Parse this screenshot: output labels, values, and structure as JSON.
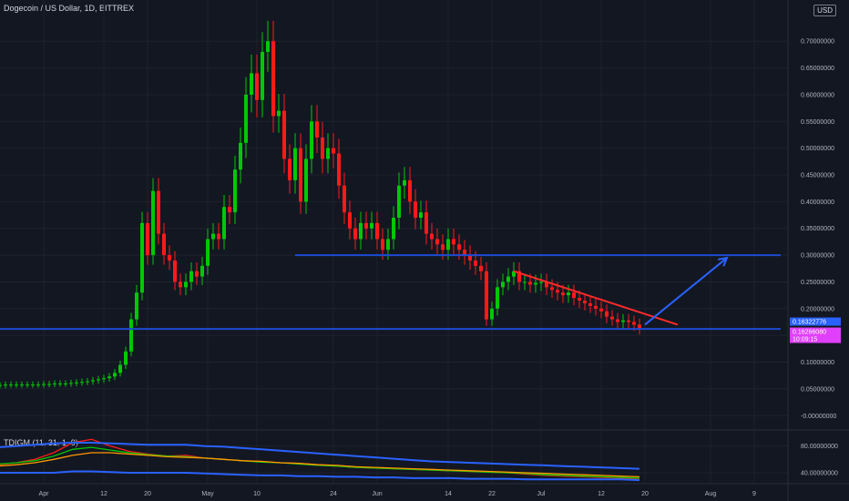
{
  "header": {
    "title": "Dogecoin / US Dollar, 1D, BITTREX"
  },
  "currency_button": "USD",
  "indicator": {
    "label": "TDIGM (11, 31, 1, 9)"
  },
  "price_labels": {
    "current": "0.16322776",
    "second": "0.16266080",
    "countdown": "10:09:15"
  },
  "colors": {
    "background": "#131722",
    "up": "#00c805",
    "down": "#ff1a1a",
    "support": "#1e4bd2",
    "trendline": "#ff2a2a",
    "arrow": "#2962ff",
    "current_price": "#2962ff",
    "second_price": "#e040fb"
  },
  "chart_data": [
    {
      "type": "candlestick",
      "title": "Dogecoin / US Dollar, 1D, BITTREX",
      "xlabel": "",
      "ylabel": "",
      "ylim": [
        -0.02,
        0.76
      ],
      "y_ticks": [
        "0.70000000",
        "0.65000000",
        "0.60000000",
        "0.55000000",
        "0.50000000",
        "0.45000000",
        "0.40000000",
        "0.35000000",
        "0.30000000",
        "0.25000000",
        "0.20000000",
        "0.15000000",
        "0.10000000",
        "0.05000000",
        "-0.00000000"
      ],
      "x_ticks": [
        "Apr",
        "12",
        "20",
        "May",
        "10",
        "24",
        "Jun",
        "14",
        "22",
        "Jul",
        "12",
        "20",
        "Aug",
        "9"
      ],
      "grid": true,
      "start_date": "2021-03-20",
      "closes": [
        0.058,
        0.057,
        0.057,
        0.057,
        0.057,
        0.058,
        0.058,
        0.058,
        0.058,
        0.058,
        0.058,
        0.058,
        0.059,
        0.059,
        0.06,
        0.06,
        0.06,
        0.061,
        0.062,
        0.063,
        0.064,
        0.066,
        0.068,
        0.07,
        0.073,
        0.08,
        0.095,
        0.12,
        0.18,
        0.23,
        0.36,
        0.3,
        0.42,
        0.34,
        0.3,
        0.29,
        0.25,
        0.24,
        0.25,
        0.27,
        0.26,
        0.28,
        0.33,
        0.34,
        0.33,
        0.39,
        0.38,
        0.46,
        0.51,
        0.6,
        0.64,
        0.59,
        0.68,
        0.7,
        0.56,
        0.57,
        0.48,
        0.44,
        0.5,
        0.4,
        0.48,
        0.55,
        0.52,
        0.48,
        0.5,
        0.49,
        0.43,
        0.38,
        0.35,
        0.33,
        0.36,
        0.35,
        0.36,
        0.33,
        0.31,
        0.33,
        0.37,
        0.43,
        0.44,
        0.4,
        0.37,
        0.38,
        0.34,
        0.33,
        0.32,
        0.31,
        0.33,
        0.32,
        0.31,
        0.3,
        0.29,
        0.28,
        0.27,
        0.18,
        0.2,
        0.24,
        0.25,
        0.26,
        0.27,
        0.25,
        0.25,
        0.245,
        0.248,
        0.25,
        0.24,
        0.235,
        0.23,
        0.225,
        0.23,
        0.22,
        0.215,
        0.21,
        0.205,
        0.2,
        0.195,
        0.185,
        0.18,
        0.175,
        0.178,
        0.175,
        0.17,
        0.163
      ],
      "support_lines": [
        0.3,
        0.162
      ],
      "trendline": {
        "from": [
          "2021-06-26",
          0.27
        ],
        "to": [
          "2021-07-26",
          0.17
        ]
      },
      "arrow": {
        "from": [
          "2021-07-20",
          0.17
        ],
        "to": [
          "2021-08-04",
          0.295
        ]
      }
    },
    {
      "type": "line",
      "title": "TDIGM (11, 31, 1, 9)",
      "y_ticks": [
        "80.00000000",
        "40.00000000"
      ],
      "ylim": [
        25,
        100
      ],
      "series": [
        {
          "color": "#ff1a1a",
          "values": [
            50,
            52,
            55,
            60,
            70,
            85,
            90,
            80,
            72,
            68,
            65,
            66,
            62,
            60,
            58,
            57,
            55,
            54,
            52,
            50,
            48,
            47,
            46,
            45,
            44,
            43,
            42,
            41,
            40,
            38,
            36,
            35,
            34,
            33,
            32,
            30
          ]
        },
        {
          "color": "#00c805",
          "values": [
            52,
            53,
            55,
            58,
            65,
            75,
            78,
            74,
            70,
            67,
            65,
            64,
            62,
            60,
            58,
            56,
            55,
            53,
            51,
            50,
            48,
            47,
            46,
            45,
            44,
            43,
            42,
            41,
            40,
            39,
            37,
            36,
            35,
            34,
            33,
            32
          ]
        },
        {
          "color": "#ff9800",
          "values": [
            50,
            50,
            52,
            55,
            60,
            66,
            70,
            70,
            68,
            66,
            64,
            63,
            62,
            60,
            58,
            57,
            55,
            54,
            52,
            51,
            49,
            48,
            47,
            46,
            45,
            44,
            43,
            42,
            41,
            40,
            39,
            38,
            37,
            36,
            35,
            34
          ]
        },
        {
          "color": "#2962ff",
          "values": [
            78,
            78,
            80,
            82,
            84,
            85,
            85,
            84,
            83,
            82,
            82,
            82,
            80,
            79,
            77,
            75,
            73,
            71,
            69,
            67,
            65,
            63,
            61,
            59,
            57,
            56,
            55,
            54,
            53,
            52,
            51,
            50,
            49,
            48,
            47,
            46
          ]
        },
        {
          "color": "#2962ff",
          "values": [
            40,
            40,
            40,
            40,
            40,
            42,
            42,
            41,
            40,
            40,
            40,
            40,
            39,
            38,
            37,
            36,
            36,
            35,
            35,
            34,
            34,
            33,
            33,
            32,
            32,
            32,
            31,
            31,
            31,
            30,
            30,
            30,
            30,
            30,
            30,
            29
          ]
        }
      ]
    }
  ]
}
